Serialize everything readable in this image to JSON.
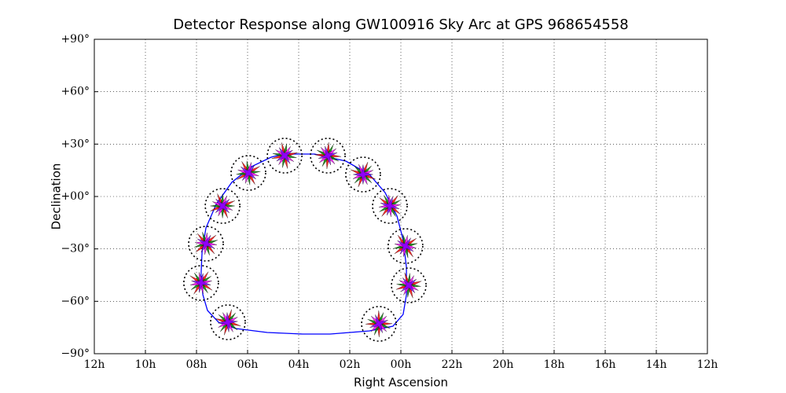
{
  "chart_data": {
    "type": "line",
    "title": "Detector Response along GW100916 Sky Arc at GPS 968654558",
    "x_label": "Right Ascension",
    "y_label": "Declination",
    "xlim": [
      12,
      -12
    ],
    "ylim": [
      -90,
      90
    ],
    "xticks": [
      {
        "value": 12,
        "label": "12h"
      },
      {
        "value": 10,
        "label": "10h"
      },
      {
        "value": 8,
        "label": "08h"
      },
      {
        "value": 6,
        "label": "06h"
      },
      {
        "value": 4,
        "label": "04h"
      },
      {
        "value": 2,
        "label": "02h"
      },
      {
        "value": 0,
        "label": "00h"
      },
      {
        "value": -2,
        "label": "22h"
      },
      {
        "value": -4,
        "label": "20h"
      },
      {
        "value": -6,
        "label": "18h"
      },
      {
        "value": -8,
        "label": "16h"
      },
      {
        "value": -10,
        "label": "14h"
      },
      {
        "value": -12,
        "label": "12h"
      }
    ],
    "yticks": [
      {
        "value": -90,
        "label": "−90°"
      },
      {
        "value": -60,
        "label": "−60°"
      },
      {
        "value": -30,
        "label": "−30°"
      },
      {
        "value": 0,
        "label": "+00°"
      },
      {
        "value": 30,
        "label": "+30°"
      },
      {
        "value": 60,
        "label": "+60°"
      },
      {
        "value": 90,
        "label": "+90°"
      }
    ],
    "grid": true,
    "series": [
      {
        "color": "#0000ff",
        "x": [
          4.62,
          3.38,
          2.15,
          1.23,
          0.62,
          0.15,
          -0.09,
          -0.22,
          -0.22,
          -0.09,
          0.31,
          1.23,
          2.77,
          3.85,
          5.23,
          6.46,
          7.14,
          7.57,
          7.75,
          7.82,
          7.78,
          7.63,
          7.23,
          6.62,
          5.85,
          5.08,
          4.62
        ],
        "values": [
          24.3,
          24.3,
          20.25,
          12.6,
          2.25,
          -11.25,
          -24.75,
          -40.5,
          -56.25,
          -67.5,
          -74.25,
          -76.95,
          -78.75,
          -78.75,
          -77.85,
          -75.6,
          -72,
          -65.25,
          -56.25,
          -45,
          -31.5,
          -18,
          -4.5,
          8.1,
          17.1,
          22.5,
          24.3
        ]
      }
    ],
    "markers": {
      "x": [
        5.97,
        4.55,
        2.86,
        1.48,
        0.43,
        -0.18,
        -0.31,
        0.86,
        6.77,
        7.82,
        7.63,
        6.98
      ],
      "y": [
        13.5,
        23.4,
        23.4,
        12.6,
        -5.4,
        -28.35,
        -50.85,
        -72.9,
        -72,
        -49.5,
        -27,
        -5.4
      ],
      "colors": [
        "#ff0000",
        "#008000",
        "#ff00ff",
        "#8000ff"
      ]
    }
  }
}
